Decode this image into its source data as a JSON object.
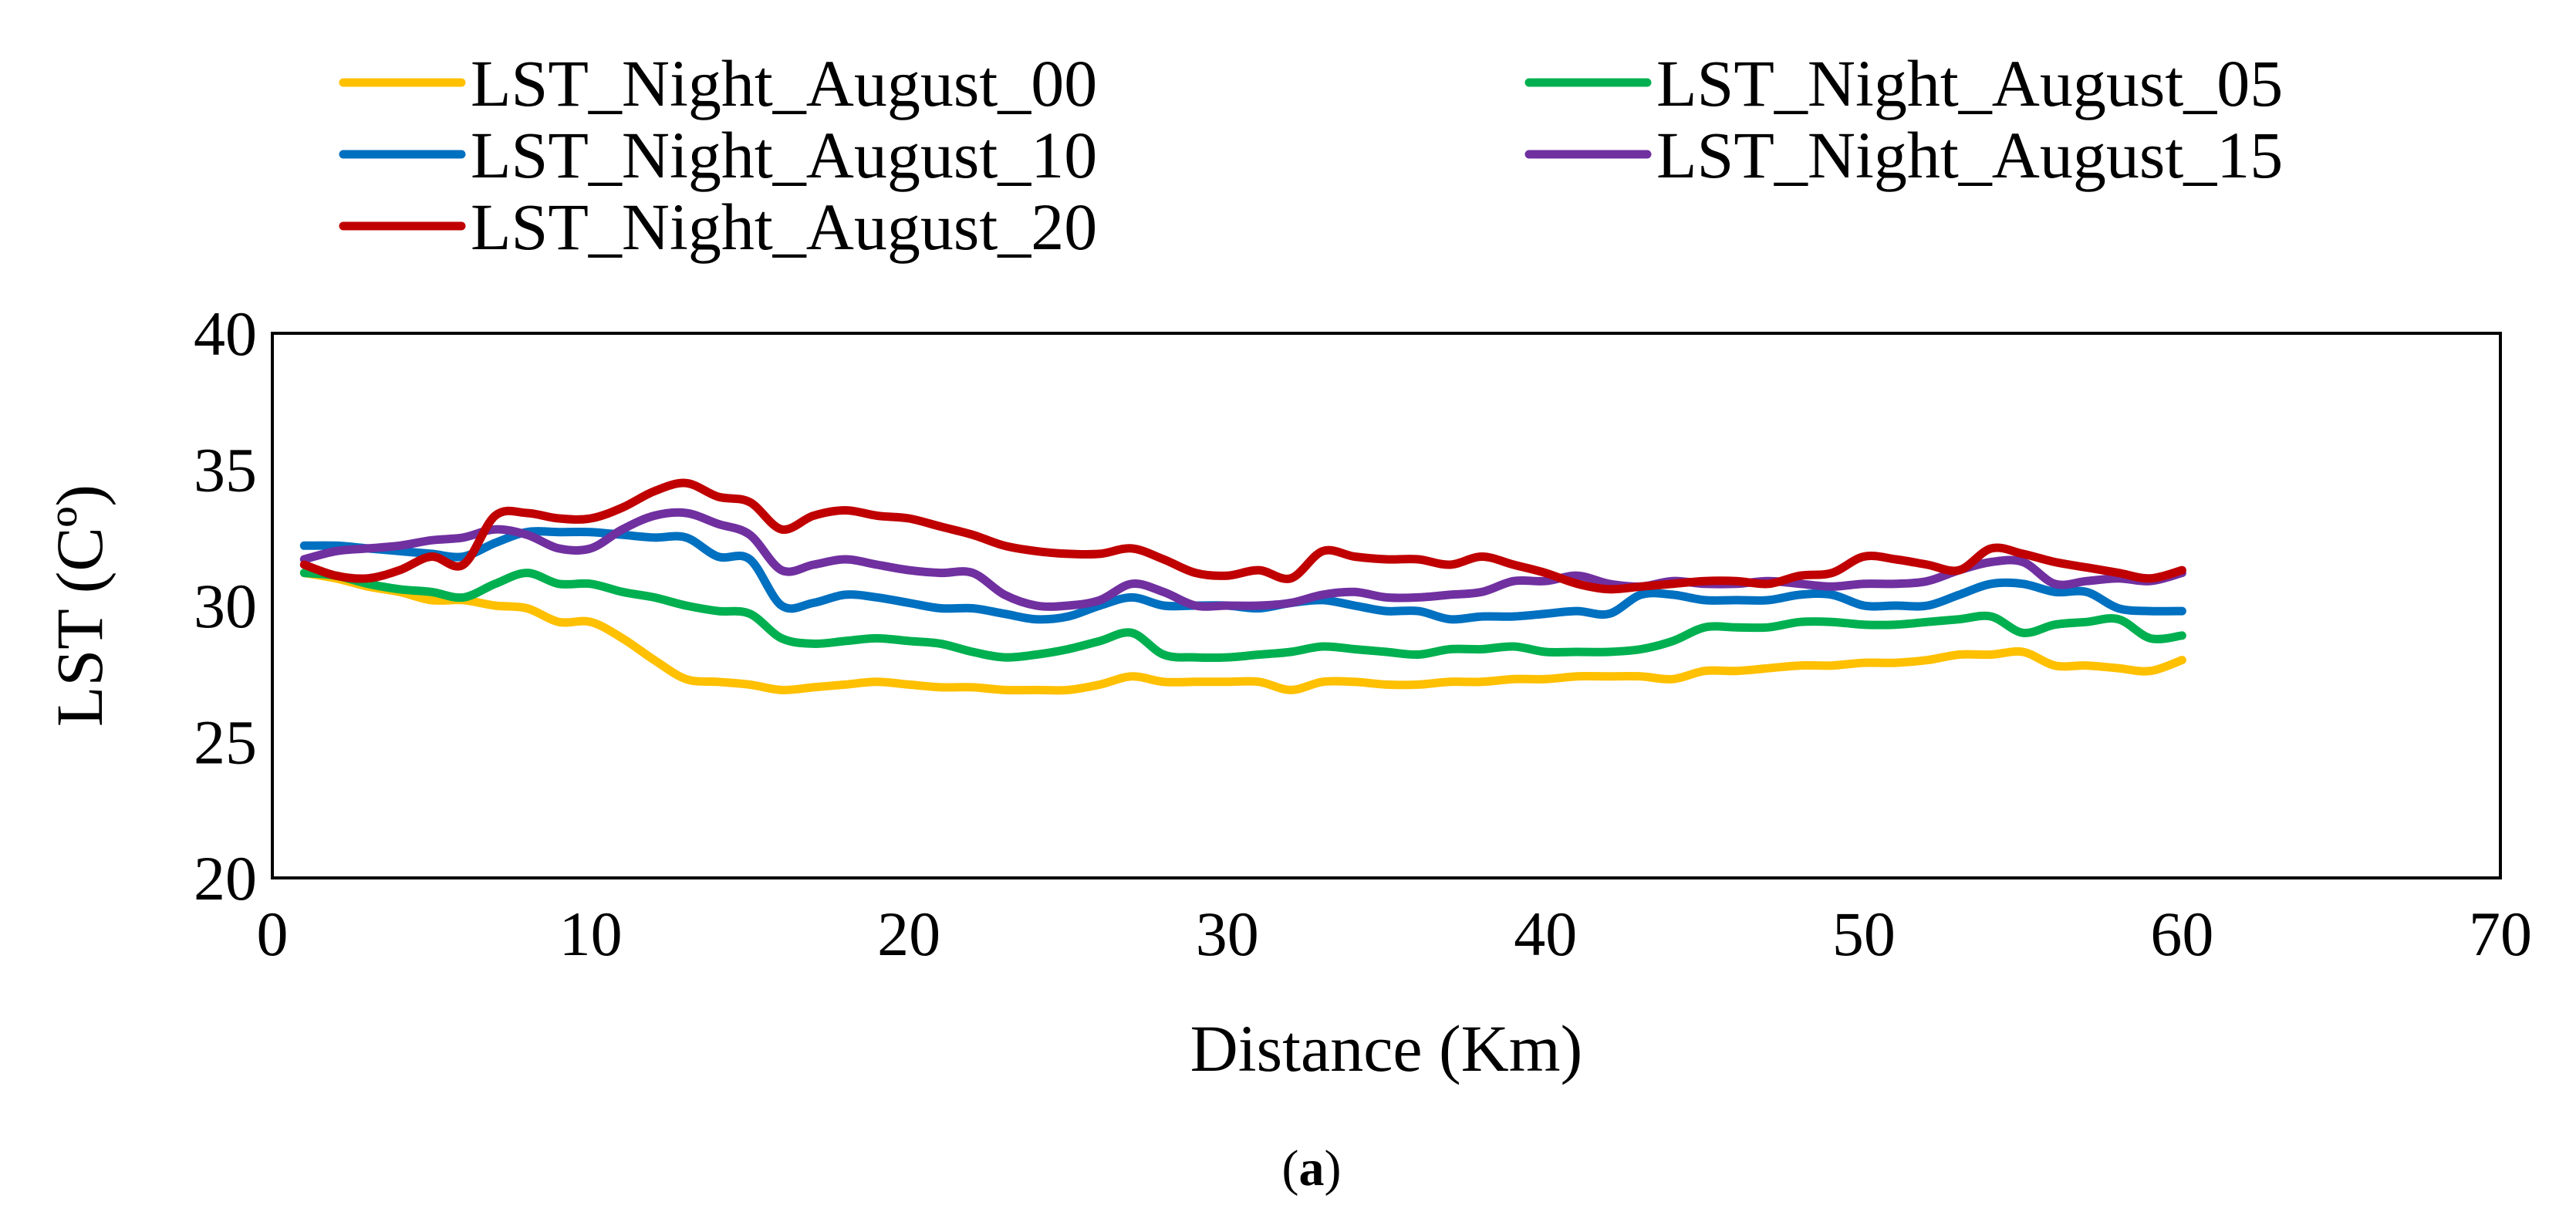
{
  "chart_data": {
    "type": "line",
    "title": "",
    "xlabel": "Distance (Km)",
    "ylabel": "LST (Cº)",
    "xlim": [
      0,
      70
    ],
    "ylim": [
      20,
      40
    ],
    "xticks": [
      0,
      10,
      20,
      30,
      40,
      50,
      60,
      70
    ],
    "yticks": [
      20,
      25,
      30,
      35,
      40
    ],
    "grid": false,
    "legend_position": "top",
    "caption_prefix": "(",
    "caption_letter": "a",
    "caption_suffix": ")",
    "x": [
      1,
      2,
      3,
      4,
      5,
      6,
      7,
      8,
      9,
      10,
      11,
      12,
      13,
      14,
      15,
      16,
      17,
      18,
      19,
      20,
      21,
      22,
      23,
      24,
      25,
      26,
      27,
      28,
      29,
      30,
      31,
      32,
      33,
      34,
      35,
      36,
      37,
      38,
      39,
      40,
      41,
      42,
      43,
      44,
      45,
      46,
      47,
      48,
      49,
      50,
      51,
      52,
      53,
      54,
      55,
      56,
      57,
      58,
      59,
      60
    ],
    "series": [
      {
        "name": "LST_Night_August_00",
        "color": "#FFC000",
        "values": [
          31.2,
          31.0,
          30.7,
          30.5,
          30.2,
          30.2,
          30.0,
          29.9,
          29.4,
          29.4,
          28.8,
          28.0,
          27.3,
          27.2,
          27.1,
          26.9,
          27.0,
          27.1,
          27.2,
          27.1,
          27.0,
          27.0,
          26.9,
          26.9,
          26.9,
          27.1,
          27.4,
          27.2,
          27.2,
          27.2,
          27.2,
          26.9,
          27.2,
          27.2,
          27.1,
          27.1,
          27.2,
          27.2,
          27.3,
          27.3,
          27.4,
          27.4,
          27.4,
          27.3,
          27.6,
          27.6,
          27.7,
          27.8,
          27.8,
          27.9,
          27.9,
          28.0,
          28.2,
          28.2,
          28.3,
          27.8,
          27.8,
          27.7,
          27.6,
          28.0
        ]
      },
      {
        "name": "LST_Night_August_05",
        "color": "#00B050",
        "values": [
          31.2,
          31.1,
          30.8,
          30.6,
          30.5,
          30.3,
          30.8,
          31.2,
          30.8,
          30.8,
          30.5,
          30.3,
          30.0,
          29.8,
          29.7,
          28.8,
          28.6,
          28.7,
          28.8,
          28.7,
          28.6,
          28.3,
          28.1,
          28.2,
          28.4,
          28.7,
          29.0,
          28.2,
          28.1,
          28.1,
          28.2,
          28.3,
          28.5,
          28.4,
          28.3,
          28.2,
          28.4,
          28.4,
          28.5,
          28.3,
          28.3,
          28.3,
          28.4,
          28.7,
          29.2,
          29.2,
          29.2,
          29.4,
          29.4,
          29.3,
          29.3,
          29.4,
          29.5,
          29.6,
          29.0,
          29.3,
          29.4,
          29.5,
          28.8,
          28.9
        ]
      },
      {
        "name": "LST_Night_August_10",
        "color": "#0070C0",
        "values": [
          32.2,
          32.2,
          32.1,
          32.0,
          31.9,
          31.8,
          32.3,
          32.7,
          32.7,
          32.7,
          32.6,
          32.5,
          32.5,
          31.8,
          31.7,
          30.0,
          30.1,
          30.4,
          30.3,
          30.1,
          29.9,
          29.9,
          29.7,
          29.5,
          29.6,
          30.0,
          30.3,
          30.0,
          30.0,
          30.0,
          29.9,
          30.1,
          30.2,
          30.0,
          29.8,
          29.8,
          29.5,
          29.6,
          29.6,
          29.7,
          29.8,
          29.7,
          30.4,
          30.4,
          30.2,
          30.2,
          30.2,
          30.4,
          30.4,
          30.0,
          30.0,
          30.0,
          30.4,
          30.8,
          30.8,
          30.5,
          30.5,
          29.9,
          29.8,
          29.8
        ]
      },
      {
        "name": "LST_Night_August_15",
        "color": "#7030A0",
        "values": [
          31.7,
          32.0,
          32.1,
          32.2,
          32.4,
          32.5,
          32.8,
          32.6,
          32.1,
          32.1,
          32.8,
          33.3,
          33.4,
          33.0,
          32.6,
          31.3,
          31.5,
          31.7,
          31.5,
          31.3,
          31.2,
          31.2,
          30.4,
          30.0,
          30.0,
          30.2,
          30.8,
          30.5,
          30.0,
          30.0,
          30.0,
          30.1,
          30.4,
          30.5,
          30.3,
          30.3,
          30.4,
          30.5,
          30.9,
          30.9,
          31.1,
          30.8,
          30.7,
          30.9,
          30.8,
          30.8,
          30.9,
          30.8,
          30.7,
          30.8,
          30.8,
          30.9,
          31.3,
          31.6,
          31.6,
          30.8,
          30.9,
          31.0,
          30.9,
          31.2
        ]
      },
      {
        "name": "LST_Night_August_20",
        "color": "#C00000",
        "values": [
          31.5,
          31.1,
          31.0,
          31.3,
          31.8,
          31.5,
          33.3,
          33.4,
          33.2,
          33.2,
          33.6,
          34.2,
          34.5,
          34.0,
          33.8,
          32.8,
          33.3,
          33.5,
          33.3,
          33.2,
          32.9,
          32.6,
          32.2,
          32.0,
          31.9,
          31.9,
          32.1,
          31.7,
          31.2,
          31.1,
          31.3,
          31.0,
          32.0,
          31.8,
          31.7,
          31.7,
          31.5,
          31.8,
          31.5,
          31.2,
          30.8,
          30.6,
          30.7,
          30.8,
          30.9,
          30.9,
          30.8,
          31.1,
          31.2,
          31.8,
          31.7,
          31.5,
          31.3,
          32.1,
          31.9,
          31.6,
          31.4,
          31.2,
          31.0,
          31.3
        ]
      }
    ]
  }
}
